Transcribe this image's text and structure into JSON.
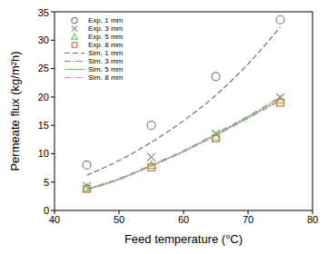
{
  "chart_data": {
    "type": "scatter",
    "x_label": "Feed temperature (°C)",
    "y_label": "Permeate flux (kg/m²h)",
    "xlim": [
      40,
      80
    ],
    "xticks": [
      40,
      50,
      60,
      70,
      80
    ],
    "ylim": [
      0,
      35
    ],
    "yticks": [
      0,
      5,
      10,
      15,
      20,
      25,
      30,
      35
    ],
    "grid": false,
    "legend": "upper left",
    "series": [
      {
        "name": "Exp. 1 mm",
        "type": "scatter",
        "color": "#808080",
        "marker": "circle",
        "x": [
          45,
          55,
          65,
          75
        ],
        "values": [
          8.0,
          15.0,
          23.6,
          33.6
        ]
      },
      {
        "name": "Exp. 3 mm",
        "type": "scatter",
        "color": "#7f8fa6",
        "marker": "x",
        "x": [
          45,
          55,
          65,
          75
        ],
        "values": [
          4.3,
          9.4,
          13.5,
          19.9
        ]
      },
      {
        "name": "Exp. 5 mm",
        "type": "scatter",
        "color": "#66cc66",
        "marker": "triangle",
        "x": [
          45,
          55,
          65,
          75
        ],
        "values": [
          4.0,
          8.0,
          13.0,
          19.5
        ]
      },
      {
        "name": "Exp. 8 mm",
        "type": "scatter",
        "color": "#e07040",
        "marker": "square",
        "x": [
          45,
          55,
          65,
          75
        ],
        "values": [
          3.8,
          7.6,
          12.7,
          19.0
        ]
      },
      {
        "name": "Sim. 1 mm",
        "type": "line",
        "color": "#707070",
        "line_style": "dashed",
        "x": [
          45,
          50,
          55,
          60,
          65,
          70,
          75
        ],
        "values": [
          6.2,
          8.8,
          12.0,
          15.8,
          20.3,
          25.8,
          32.3
        ]
      },
      {
        "name": "Sim. 3 mm",
        "type": "line",
        "color": "#808080",
        "line_style": "dashdot",
        "x": [
          45,
          50,
          55,
          60,
          65,
          70,
          75
        ],
        "values": [
          3.8,
          5.6,
          8.0,
          10.5,
          13.5,
          16.6,
          20.0
        ]
      },
      {
        "name": "Sim. 5 mm",
        "type": "line",
        "color": "#66cc66",
        "line_style": "solid",
        "x": [
          45,
          50,
          55,
          60,
          65,
          70,
          75
        ],
        "values": [
          3.7,
          5.5,
          7.9,
          10.4,
          13.3,
          16.4,
          19.6
        ]
      },
      {
        "name": "Sim. 8 mm",
        "type": "line",
        "color": "#e080c0",
        "line_style": "dashdot",
        "x": [
          45,
          50,
          55,
          60,
          65,
          70,
          75
        ],
        "values": [
          3.6,
          5.4,
          7.8,
          10.3,
          13.2,
          16.2,
          19.3
        ]
      }
    ]
  }
}
